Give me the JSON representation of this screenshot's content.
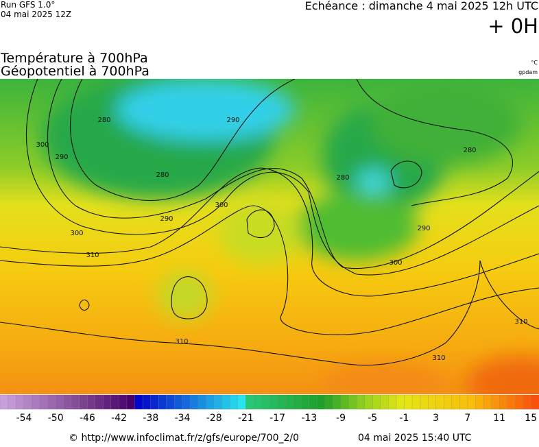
{
  "header": {
    "run": "Run GFS 1.0°",
    "run_date": "04 mai 2025 12Z",
    "forecast": "Echéance : dimanche 4 mai 2025 12h UTC",
    "lead": "+ 0H"
  },
  "titles": [
    "Température à 700hPa",
    "Géopotentiel à 700hPa"
  ],
  "units": [
    "°C",
    "gpdam"
  ],
  "map": {
    "contour_labels": [
      280,
      290,
      300,
      280,
      290,
      300,
      290,
      300,
      310,
      280,
      280,
      290,
      300,
      310,
      310,
      310
    ]
  },
  "colorbar": {
    "labels": [
      -54,
      -50,
      -46,
      -42,
      -38,
      -34,
      -28,
      -21,
      -17,
      -13,
      -9,
      -5,
      -1,
      3,
      7,
      11,
      15
    ]
  },
  "footer": {
    "source": "© http://www.infoclimat.fr/z/gfs/europe/700_2/0",
    "generated": "04 mai 2025 15:40 UTC"
  }
}
